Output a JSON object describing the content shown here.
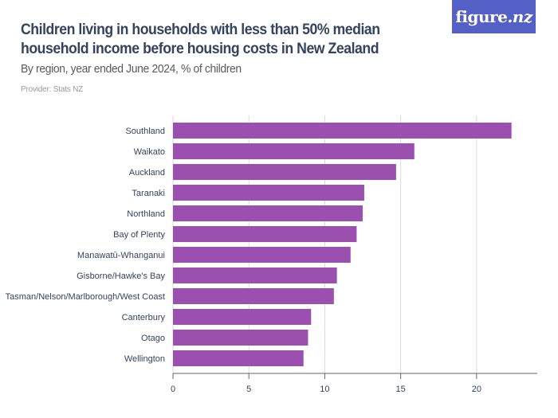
{
  "header": {
    "title": "Children living in households with less than 50% median household income before housing costs in New Zealand",
    "subtitle": "By region, year ended June 2024, % of children",
    "provider": "Provider: Stats NZ"
  },
  "logo": {
    "brand": "figure",
    "suffix": ".nz",
    "background": "#5560c6"
  },
  "colors": {
    "bar": "#9b4fae",
    "grid": "#d9d9d9",
    "axis": "#666666",
    "text": "#34435e"
  },
  "chart_data": {
    "type": "bar",
    "orientation": "horizontal",
    "title": "Children living in households with less than 50% median household income before housing costs in New Zealand",
    "subtitle": "By region, year ended June 2024, % of children",
    "xlabel": "",
    "ylabel": "",
    "categories": [
      "Southland",
      "Waikato",
      "Auckland",
      "Taranaki",
      "Northland",
      "Bay of Plenty",
      "Manawatū-Whanganui",
      "Gisborne/Hawke's Bay",
      "Tasman/Nelson/Marlborough/West Coast",
      "Canterbury",
      "Otago",
      "Wellington"
    ],
    "values": [
      22.3,
      15.9,
      14.7,
      12.6,
      12.5,
      12.1,
      11.7,
      10.8,
      10.6,
      9.1,
      8.9,
      8.6
    ],
    "xlim": [
      0,
      24
    ],
    "xticks": [
      0,
      5,
      10,
      15,
      20
    ],
    "grid": true,
    "legend": "none"
  }
}
